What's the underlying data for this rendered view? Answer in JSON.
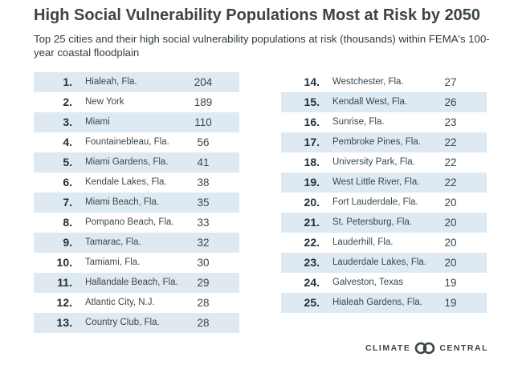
{
  "chart_data": {
    "type": "table",
    "title": "High Social Vulnerability Populations Most at Risk by 2050",
    "subtitle": "Top 25 cities and their high social vulnerability populations at risk (thousands) within FEMA's 100-year coastal floodplain",
    "unit": "thousands",
    "rows": [
      {
        "rank": "1.",
        "city": "Hialeah, Fla.",
        "value": 204
      },
      {
        "rank": "2.",
        "city": "New York",
        "value": 189
      },
      {
        "rank": "3.",
        "city": "Miami",
        "value": 110
      },
      {
        "rank": "4.",
        "city": "Fountainebleau, Fla.",
        "value": 56
      },
      {
        "rank": "5.",
        "city": "Miami Gardens, Fla.",
        "value": 41
      },
      {
        "rank": "6.",
        "city": "Kendale Lakes, Fla.",
        "value": 38
      },
      {
        "rank": "7.",
        "city": "Miami Beach, Fla.",
        "value": 35
      },
      {
        "rank": "8.",
        "city": "Pompano Beach, Fla.",
        "value": 33
      },
      {
        "rank": "9.",
        "city": "Tamarac, Fla.",
        "value": 32
      },
      {
        "rank": "10.",
        "city": "Tamiami, Fla.",
        "value": 30
      },
      {
        "rank": "11.",
        "city": "Hallandale Beach, Fla.",
        "value": 29
      },
      {
        "rank": "12.",
        "city": "Atlantic City, N.J.",
        "value": 28
      },
      {
        "rank": "13.",
        "city": "Country Club, Fla.",
        "value": 28
      },
      {
        "rank": "14.",
        "city": "Westchester, Fla.",
        "value": 27
      },
      {
        "rank": "15.",
        "city": "Kendall West, Fla.",
        "value": 26
      },
      {
        "rank": "16.",
        "city": "Sunrise, Fla.",
        "value": 23
      },
      {
        "rank": "17.",
        "city": "Pembroke Pines, Fla.",
        "value": 22
      },
      {
        "rank": "18.",
        "city": "University Park, Fla.",
        "value": 22
      },
      {
        "rank": "19.",
        "city": "West Little River, Fla.",
        "value": 22
      },
      {
        "rank": "20.",
        "city": "Fort Lauderdale, Fla.",
        "value": 20
      },
      {
        "rank": "21.",
        "city": "St. Petersburg, Fla.",
        "value": 20
      },
      {
        "rank": "22.",
        "city": "Lauderhill, Fla.",
        "value": 20
      },
      {
        "rank": "23.",
        "city": "Lauderdale Lakes, Fla.",
        "value": 20
      },
      {
        "rank": "24.",
        "city": "Galveston, Texas",
        "value": 19
      },
      {
        "rank": "25.",
        "city": "Hialeah Gardens, Fla.",
        "value": 19
      }
    ]
  },
  "branding": {
    "logo_left": "CLIMATE",
    "logo_right": "CENTRAL",
    "logo_color": "#3b4449"
  },
  "colors": {
    "row_shade": "#dfe9f2",
    "text": "#2f3a40"
  }
}
